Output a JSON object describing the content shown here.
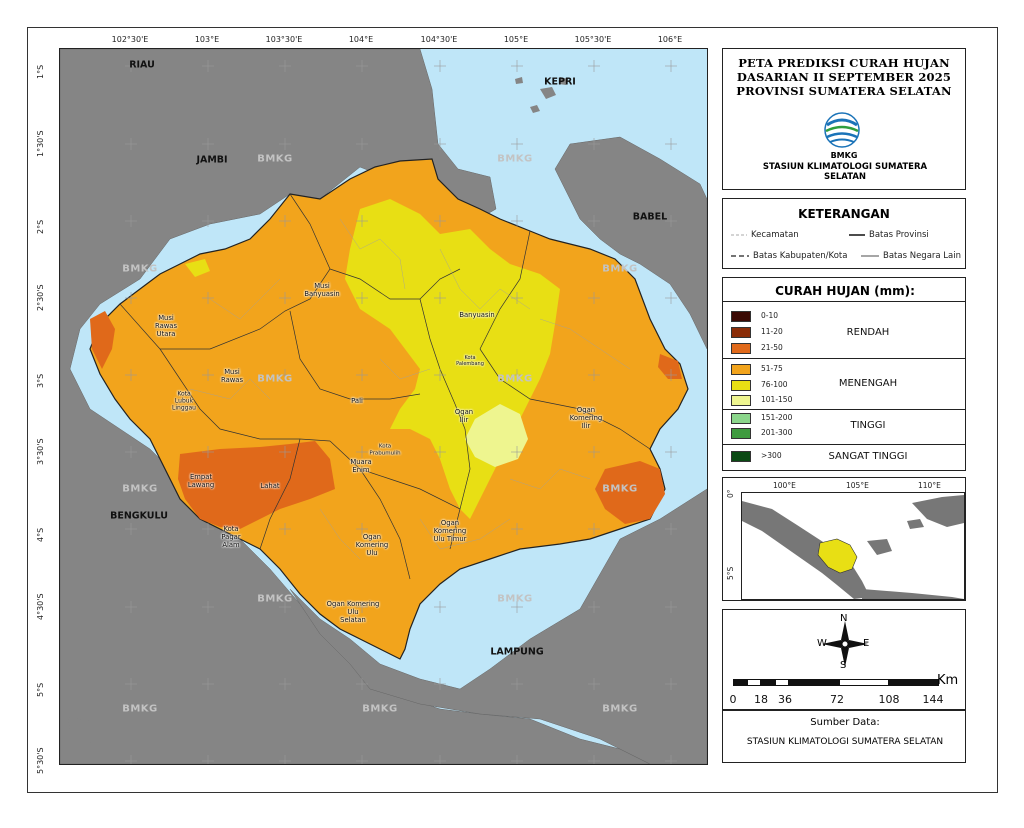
{
  "map": {
    "lon_ticks": [
      "102°30'E",
      "103°E",
      "103°30'E",
      "104°E",
      "104°30'E",
      "105°E",
      "105°30'E",
      "106°E"
    ],
    "lat_ticks": [
      "1°S",
      "1°30'S",
      "2°S",
      "2°30'S",
      "3°S",
      "3°30'S",
      "4°S",
      "4°30'S",
      "5°S",
      "5°30'S"
    ],
    "provinces": {
      "riau": "RIAU",
      "jambi": "JAMBI",
      "kepri": "KEPRI",
      "babel": "BABEL",
      "bengkulu": "BENGKULU",
      "lampung": "LAMPUNG"
    },
    "regencies": {
      "musi_banyuasin": "Musi\nBanyuasin",
      "banyuasin": "Banyuasin",
      "musi_rawas_utara": "Musi\nRawas\nUtara",
      "musi_rawas": "Musi\nRawas",
      "kota_palembang": "Kota\nPalembang",
      "kota_lubuk_linggau": "Kota\nLubuk\nLinggau",
      "pali": "Pali",
      "ogan_ilir": "Ogan\nIlir",
      "ogan_komering_ilir": "Ogan\nKomering\nIlir",
      "kota_prabumulih": "Kota\nPrabumulih",
      "muara_enim": "Muara\nEnim",
      "empat_lawang": "Empat\nLawang",
      "lahat": "Lahat",
      "kota_pagar_alam": "Kota\nPagar\nAlam",
      "ogan_komering_ulu": "Ogan\nKomering\nUlu",
      "ogan_komering_ulu_timur": "Ogan\nKomering\nUlu Timur",
      "ogan_komering_ulu_selatan": "Ogan Komering\nUlu\nSelatan"
    },
    "watermark": "BMKG"
  },
  "title": {
    "line1": "PETA PREDIKSI CURAH HUJAN",
    "line2": "DASARIAN II SEPTEMBER 2025",
    "line3": "PROVINSI SUMATERA SELATAN",
    "logo_text": "BMKG",
    "station": "STASIUN KLIMATOLOGI SUMATERA SELATAN"
  },
  "keterangan": {
    "heading": "KETERANGAN",
    "items": [
      "Kecamatan",
      "Batas Provinsi",
      "Batas Kabupaten/Kota",
      "Batas Negara Lain"
    ]
  },
  "curah_hujan": {
    "heading": "CURAH HUJAN (mm):",
    "classes": [
      {
        "label": "0-10",
        "color": "#3b0a04"
      },
      {
        "label": "11-20",
        "color": "#8a2c07"
      },
      {
        "label": "21-50",
        "color": "#e0691a"
      },
      {
        "label": "51-75",
        "color": "#f2a41c"
      },
      {
        "label": "76-100",
        "color": "#e8df14"
      },
      {
        "label": "101-150",
        "color": "#eef58f"
      },
      {
        "label": "151-200",
        "color": "#8bd68b"
      },
      {
        "label": "201-300",
        "color": "#3f9b3f"
      },
      {
        "label": ">300",
        "color": "#0b4a14"
      }
    ],
    "categories": [
      "RENDAH",
      "MENENGAH",
      "TINGGI",
      "SANGAT TINGGI"
    ]
  },
  "inset": {
    "lon_ticks": [
      "100°E",
      "105°E",
      "110°E"
    ],
    "lat_ticks": [
      "0°",
      "5°S"
    ]
  },
  "compass": {
    "n": "N",
    "s": "S",
    "e": "E",
    "w": "W"
  },
  "scale": {
    "unit": "Km",
    "numbers": [
      "0",
      "18",
      "36",
      "72",
      "108",
      "144"
    ]
  },
  "source": {
    "label": "Sumber Data:",
    "value": "STASIUN KLIMATOLOGI SUMATERA SELATAN"
  },
  "colors": {
    "sea": "#bfe6f8",
    "land_other": "#858585",
    "rendah_dark": "#8a2c07",
    "rendah": "#e0691a",
    "menengah": "#f2a41c",
    "menengah_yellow": "#e8df14",
    "menengah_light": "#eef58f"
  }
}
